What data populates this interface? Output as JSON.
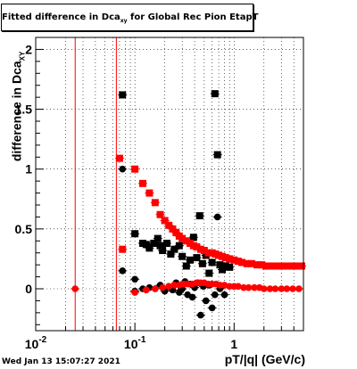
{
  "title": {
    "prefix": "Fitted difference in Dca",
    "sub": "xy",
    "suffix": " for Global Rec Pion EtapT"
  },
  "ylabel": {
    "main": "difference in Dca",
    "sub": "XY"
  },
  "xlabel": "pT/|q| (GeV/c)",
  "timestamp": "Wed Jan 13 15:07:27 2021",
  "colors": {
    "series_a": "#000000",
    "series_b": "#ff0000",
    "grid": "#000000"
  },
  "chart_data": {
    "type": "scatter",
    "xscale": "log",
    "xlim": [
      0.01,
      5
    ],
    "ylim": [
      -0.35,
      2.1
    ],
    "grid": true,
    "x_ticks": [
      {
        "value": 0.01,
        "base": "10",
        "exp": "-2"
      },
      {
        "value": 0.1,
        "base": "10",
        "exp": "-1"
      },
      {
        "value": 1,
        "base": "1",
        "exp": ""
      }
    ],
    "y_ticks": [
      {
        "value": 0,
        "label": "0"
      },
      {
        "value": 0.5,
        "label": "0.5"
      },
      {
        "value": 1,
        "label": "1"
      },
      {
        "value": 1.5,
        "label": "1.5"
      },
      {
        "value": 2,
        "label": "2"
      }
    ],
    "vertical_lines": [
      {
        "x": 0.025,
        "color": "#ff0000"
      },
      {
        "x": 0.065,
        "color": "#ff0000"
      }
    ],
    "series": [
      {
        "marker": "square",
        "color": "#000000",
        "points": [
          [
            0.075,
            1.62
          ],
          [
            0.1,
            0.46
          ],
          [
            0.12,
            0.38
          ],
          [
            0.13,
            0.37
          ],
          [
            0.14,
            0.34
          ],
          [
            0.155,
            0.38
          ],
          [
            0.17,
            0.42
          ],
          [
            0.18,
            0.36
          ],
          [
            0.19,
            0.32
          ],
          [
            0.21,
            0.38
          ],
          [
            0.23,
            0.29
          ],
          [
            0.25,
            0.33
          ],
          [
            0.28,
            0.36
          ],
          [
            0.3,
            0.27
          ],
          [
            0.33,
            0.19
          ],
          [
            0.36,
            0.24
          ],
          [
            0.39,
            0.43
          ],
          [
            0.42,
            0.26
          ],
          [
            0.45,
            0.61
          ],
          [
            0.48,
            0.21
          ],
          [
            0.52,
            0.28
          ],
          [
            0.56,
            0.13
          ],
          [
            0.6,
            0.22
          ],
          [
            0.64,
            1.63
          ],
          [
            0.68,
            1.12
          ],
          [
            0.72,
            0.2
          ],
          [
            0.76,
            0.16
          ],
          [
            0.82,
            0.19
          ],
          [
            0.9,
            0.18
          ]
        ]
      },
      {
        "marker": "circle",
        "color": "#000000",
        "points": [
          [
            0.075,
            0.15
          ],
          [
            0.075,
            1.0
          ],
          [
            0.1,
            -0.02
          ],
          [
            0.1,
            0.08
          ],
          [
            0.12,
            0.0
          ],
          [
            0.14,
            0.01
          ],
          [
            0.16,
            0.0
          ],
          [
            0.18,
            0.03
          ],
          [
            0.2,
            -0.02
          ],
          [
            0.22,
            0.02
          ],
          [
            0.24,
            -0.01
          ],
          [
            0.26,
            0.05
          ],
          [
            0.28,
            -0.03
          ],
          [
            0.3,
            0.0
          ],
          [
            0.32,
            0.06
          ],
          [
            0.34,
            -0.05
          ],
          [
            0.36,
            0.04
          ],
          [
            0.38,
            -0.07
          ],
          [
            0.4,
            0.01
          ],
          [
            0.43,
            0.05
          ],
          [
            0.46,
            -0.22
          ],
          [
            0.49,
            0.02
          ],
          [
            0.52,
            -0.1
          ],
          [
            0.56,
            0.03
          ],
          [
            0.6,
            -0.16
          ],
          [
            0.64,
            -0.05
          ],
          [
            0.68,
            0.6
          ],
          [
            0.72,
            0.0
          ],
          [
            0.8,
            -0.05
          ]
        ]
      },
      {
        "marker": "square",
        "color": "#ff0000",
        "points": [
          [
            0.07,
            1.09
          ],
          [
            0.075,
            0.33
          ],
          [
            0.1,
            1.0
          ],
          [
            0.12,
            0.88
          ],
          [
            0.14,
            0.8
          ],
          [
            0.16,
            0.72
          ],
          [
            0.18,
            0.62
          ],
          [
            0.2,
            0.57
          ],
          [
            0.22,
            0.53
          ],
          [
            0.24,
            0.5
          ],
          [
            0.26,
            0.47
          ],
          [
            0.28,
            0.44
          ],
          [
            0.3,
            0.42
          ],
          [
            0.33,
            0.4
          ],
          [
            0.36,
            0.38
          ],
          [
            0.39,
            0.36
          ],
          [
            0.42,
            0.35
          ],
          [
            0.46,
            0.33
          ],
          [
            0.5,
            0.32
          ],
          [
            0.55,
            0.3
          ],
          [
            0.6,
            0.3
          ],
          [
            0.65,
            0.29
          ],
          [
            0.7,
            0.28
          ],
          [
            0.76,
            0.27
          ],
          [
            0.82,
            0.26
          ],
          [
            0.9,
            0.25
          ],
          [
            1.0,
            0.24
          ],
          [
            1.1,
            0.23
          ],
          [
            1.2,
            0.22
          ],
          [
            1.35,
            0.21
          ],
          [
            1.5,
            0.21
          ],
          [
            1.7,
            0.2
          ],
          [
            1.9,
            0.2
          ],
          [
            2.1,
            0.19
          ],
          [
            2.4,
            0.19
          ],
          [
            2.7,
            0.19
          ],
          [
            3.0,
            0.19
          ],
          [
            3.4,
            0.19
          ],
          [
            3.8,
            0.19
          ],
          [
            4.3,
            0.19
          ],
          [
            4.8,
            0.19
          ]
        ]
      },
      {
        "marker": "circle",
        "color": "#ff0000",
        "points": [
          [
            0.025,
            0.0
          ],
          [
            0.1,
            -0.03
          ],
          [
            0.13,
            -0.01
          ],
          [
            0.16,
            0.0
          ],
          [
            0.19,
            0.01
          ],
          [
            0.22,
            0.02
          ],
          [
            0.25,
            0.03
          ],
          [
            0.28,
            0.03
          ],
          [
            0.31,
            0.04
          ],
          [
            0.34,
            0.04
          ],
          [
            0.38,
            0.04
          ],
          [
            0.42,
            0.05
          ],
          [
            0.46,
            0.05
          ],
          [
            0.5,
            0.05
          ],
          [
            0.55,
            0.04
          ],
          [
            0.6,
            0.04
          ],
          [
            0.66,
            0.04
          ],
          [
            0.72,
            0.03
          ],
          [
            0.8,
            0.03
          ],
          [
            0.9,
            0.02
          ],
          [
            1.0,
            0.02
          ],
          [
            1.1,
            0.02
          ],
          [
            1.25,
            0.01
          ],
          [
            1.4,
            0.01
          ],
          [
            1.6,
            0.01
          ],
          [
            1.8,
            0.01
          ],
          [
            2.0,
            0.0
          ],
          [
            2.3,
            0.0
          ],
          [
            2.6,
            0.0
          ],
          [
            3.0,
            0.0
          ],
          [
            3.4,
            0.0
          ],
          [
            3.9,
            0.0
          ],
          [
            4.5,
            0.0
          ]
        ]
      }
    ]
  }
}
